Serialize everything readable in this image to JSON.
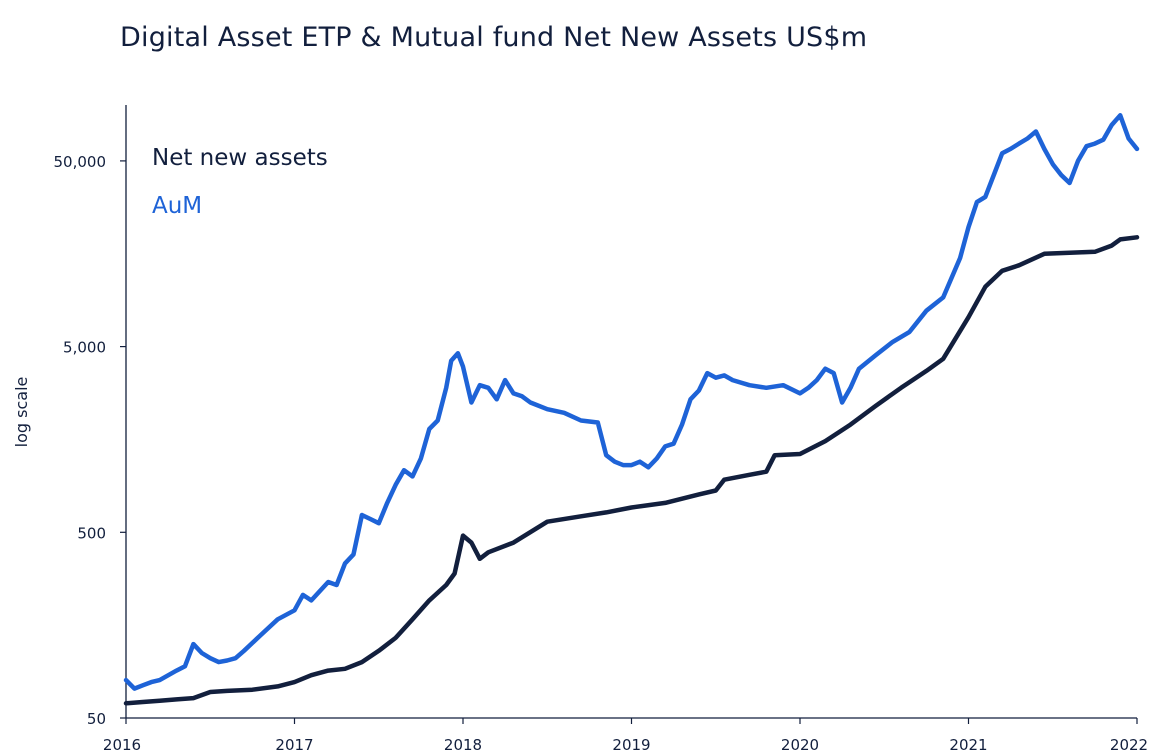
{
  "chart_data": {
    "type": "line",
    "title": "Digital Asset ETP & Mutual fund Net New Assets US$m",
    "xlabel": "",
    "ylabel": "log scale",
    "y_scale": "log",
    "ylim": [
      50,
      100000
    ],
    "y_ticks": [
      {
        "value": 50,
        "label": "50"
      },
      {
        "value": 500,
        "label": "500"
      },
      {
        "value": 5000,
        "label": "5,000"
      },
      {
        "value": 50000,
        "label": "50,000"
      }
    ],
    "xlim": [
      2016,
      2022
    ],
    "x_ticks": [
      {
        "value": 2016,
        "label": "2016"
      },
      {
        "value": 2017,
        "label": "2017"
      },
      {
        "value": 2018,
        "label": "2018"
      },
      {
        "value": 2019,
        "label": "2019"
      },
      {
        "value": 2020,
        "label": "2020"
      },
      {
        "value": 2021,
        "label": "2021"
      },
      {
        "value": 2022,
        "label": "2022"
      }
    ],
    "grid": false,
    "legend_position": "top-left",
    "series": [
      {
        "name": "Net new assets",
        "color": "#121f3d",
        "x": [
          2016.0,
          2016.1,
          2016.2,
          2016.3,
          2016.4,
          2016.5,
          2016.6,
          2016.75,
          2016.9,
          2017.0,
          2017.1,
          2017.2,
          2017.3,
          2017.4,
          2017.5,
          2017.6,
          2017.7,
          2017.8,
          2017.9,
          2017.95,
          2018.0,
          2018.05,
          2018.1,
          2018.15,
          2018.3,
          2018.5,
          2018.7,
          2018.85,
          2019.0,
          2019.2,
          2019.4,
          2019.5,
          2019.55,
          2019.7,
          2019.8,
          2019.85,
          2020.0,
          2020.15,
          2020.3,
          2020.45,
          2020.6,
          2020.75,
          2020.85,
          2021.0,
          2021.1,
          2021.2,
          2021.3,
          2021.45,
          2021.6,
          2021.75,
          2021.85,
          2021.9,
          2022.0
        ],
        "values": [
          60,
          61,
          62,
          63,
          64,
          69,
          70,
          71,
          74,
          78,
          85,
          90,
          92,
          100,
          115,
          135,
          170,
          215,
          260,
          300,
          480,
          440,
          360,
          390,
          440,
          570,
          610,
          640,
          680,
          720,
          800,
          840,
          960,
          1020,
          1060,
          1300,
          1320,
          1550,
          1900,
          2400,
          3000,
          3700,
          4300,
          7200,
          10500,
          12800,
          13700,
          15800,
          16000,
          16200,
          17500,
          18900,
          19400
        ]
      },
      {
        "name": "AuM",
        "color": "#1e63d7",
        "x": [
          2016.0,
          2016.05,
          2016.1,
          2016.15,
          2016.2,
          2016.3,
          2016.35,
          2016.4,
          2016.45,
          2016.5,
          2016.55,
          2016.6,
          2016.65,
          2016.7,
          2016.8,
          2016.9,
          2017.0,
          2017.05,
          2017.1,
          2017.2,
          2017.25,
          2017.3,
          2017.35,
          2017.4,
          2017.45,
          2017.5,
          2017.55,
          2017.6,
          2017.65,
          2017.7,
          2017.75,
          2017.8,
          2017.85,
          2017.9,
          2017.93,
          2017.97,
          2018.0,
          2018.05,
          2018.1,
          2018.15,
          2018.2,
          2018.25,
          2018.3,
          2018.35,
          2018.4,
          2018.5,
          2018.6,
          2018.7,
          2018.8,
          2018.85,
          2018.9,
          2018.95,
          2019.0,
          2019.05,
          2019.1,
          2019.15,
          2019.2,
          2019.25,
          2019.3,
          2019.35,
          2019.4,
          2019.45,
          2019.5,
          2019.55,
          2019.6,
          2019.7,
          2019.8,
          2019.9,
          2020.0,
          2020.05,
          2020.1,
          2020.15,
          2020.2,
          2020.25,
          2020.3,
          2020.35,
          2020.45,
          2020.55,
          2020.65,
          2020.75,
          2020.85,
          2020.95,
          2021.0,
          2021.05,
          2021.1,
          2021.15,
          2021.2,
          2021.25,
          2021.3,
          2021.35,
          2021.4,
          2021.45,
          2021.5,
          2021.55,
          2021.6,
          2021.65,
          2021.7,
          2021.75,
          2021.8,
          2021.85,
          2021.9,
          2021.95,
          2022.0
        ],
        "values": [
          80,
          72,
          75,
          78,
          80,
          90,
          95,
          125,
          112,
          105,
          100,
          102,
          105,
          115,
          140,
          170,
          190,
          230,
          215,
          270,
          260,
          340,
          380,
          620,
          590,
          560,
          720,
          900,
          1080,
          1000,
          1250,
          1800,
          2000,
          3000,
          4200,
          4600,
          3900,
          2500,
          3100,
          3000,
          2600,
          3300,
          2800,
          2700,
          2500,
          2300,
          2200,
          2000,
          1950,
          1300,
          1200,
          1150,
          1150,
          1200,
          1120,
          1250,
          1450,
          1500,
          1900,
          2600,
          2900,
          3600,
          3400,
          3500,
          3300,
          3100,
          3000,
          3100,
          2800,
          3000,
          3300,
          3800,
          3600,
          2500,
          3000,
          3800,
          4500,
          5300,
          6000,
          7800,
          9200,
          15000,
          22000,
          30000,
          32000,
          42000,
          55000,
          58000,
          62000,
          66000,
          72000,
          58000,
          48000,
          42000,
          38000,
          50000,
          60000,
          62000,
          65000,
          78000,
          88000,
          66000,
          58000
        ]
      }
    ]
  }
}
